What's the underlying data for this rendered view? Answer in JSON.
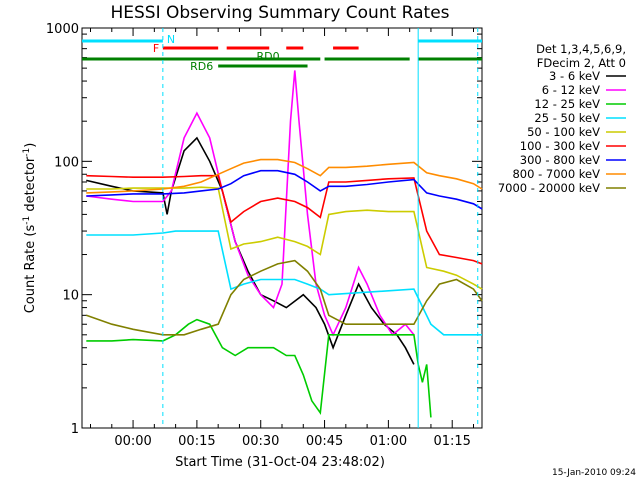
{
  "chart_data": {
    "type": "line",
    "title": "HESSI Observing Summary Count Rates",
    "xlabel": "Start Time (31-Oct-04 23:48:02)",
    "ylabel_main": "Count Rate (s",
    "ylabel_sup1": "-1",
    "ylabel_mid": " detector",
    "ylabel_sup2": "-1",
    "ylabel_end": ")",
    "yscale": "log",
    "ylim": [
      1,
      1000
    ],
    "xlim_minutes_from_start": [
      -12,
      82
    ],
    "x_ticks": [
      {
        "m": 0,
        "label": "00:00"
      },
      {
        "m": 15,
        "label": "00:15"
      },
      {
        "m": 30,
        "label": "00:30"
      },
      {
        "m": 45,
        "label": "00:45"
      },
      {
        "m": 60,
        "label": "01:00"
      },
      {
        "m": 75,
        "label": "01:15"
      }
    ],
    "y_ticks": [
      {
        "v": 1,
        "label": "1"
      },
      {
        "v": 10,
        "label": "10"
      },
      {
        "v": 100,
        "label": "100"
      },
      {
        "v": 1000,
        "label": "1000"
      }
    ],
    "flag_labels": [
      {
        "text": "N",
        "color": "#00e0ff"
      },
      {
        "text": "F",
        "color": "#ff0000"
      },
      {
        "text": "RD0",
        "color": "#008000"
      },
      {
        "text": "RD6",
        "color": "#008000"
      }
    ],
    "legend_header": [
      "Det 1,3,4,5,6,9,",
      "FDecim 2, Att 0"
    ],
    "series": [
      {
        "name": "3 - 6 keV",
        "color": "#000000",
        "points": [
          [
            -11,
            72
          ],
          [
            -5,
            65
          ],
          [
            0,
            60
          ],
          [
            7,
            58
          ],
          [
            8,
            40
          ],
          [
            9,
            60
          ],
          [
            12,
            120
          ],
          [
            15,
            150
          ],
          [
            18,
            100
          ],
          [
            21,
            60
          ],
          [
            24,
            25
          ],
          [
            27,
            15
          ],
          [
            30,
            10
          ],
          [
            33,
            9
          ],
          [
            36,
            8
          ],
          [
            40,
            10
          ],
          [
            43,
            8
          ],
          [
            45,
            6
          ],
          [
            47,
            4
          ],
          [
            50,
            7
          ],
          [
            53,
            12
          ],
          [
            56,
            8
          ],
          [
            59,
            6
          ],
          [
            62,
            5
          ],
          [
            64,
            4
          ],
          [
            66,
            3
          ]
        ]
      },
      {
        "name": "6 - 12 keV",
        "color": "#ff00ff",
        "points": [
          [
            -11,
            55
          ],
          [
            -5,
            52
          ],
          [
            0,
            50
          ],
          [
            7,
            50
          ],
          [
            9,
            60
          ],
          [
            12,
            150
          ],
          [
            15,
            230
          ],
          [
            18,
            150
          ],
          [
            21,
            60
          ],
          [
            24,
            25
          ],
          [
            27,
            14
          ],
          [
            30,
            10
          ],
          [
            33,
            8
          ],
          [
            35,
            12
          ],
          [
            37,
            200
          ],
          [
            38,
            480
          ],
          [
            39,
            200
          ],
          [
            41,
            40
          ],
          [
            43,
            12
          ],
          [
            45,
            7
          ],
          [
            47,
            5
          ],
          [
            50,
            8
          ],
          [
            53,
            16
          ],
          [
            55,
            12
          ],
          [
            58,
            7
          ],
          [
            61,
            5
          ],
          [
            64,
            6
          ],
          [
            66,
            5
          ]
        ]
      },
      {
        "name": "12 - 25 keV",
        "color": "#00cc00",
        "points": [
          [
            -11,
            4.5
          ],
          [
            -5,
            4.5
          ],
          [
            0,
            4.6
          ],
          [
            7,
            4.5
          ],
          [
            10,
            5
          ],
          [
            13,
            6
          ],
          [
            15,
            6.5
          ],
          [
            18,
            6
          ],
          [
            21,
            4
          ],
          [
            24,
            3.5
          ],
          [
            27,
            4
          ],
          [
            30,
            4
          ],
          [
            33,
            4
          ],
          [
            36,
            3.5
          ],
          [
            38,
            3.5
          ],
          [
            40,
            2.5
          ],
          [
            42,
            1.6
          ],
          [
            44,
            1.3
          ],
          [
            46,
            5
          ],
          [
            50,
            5
          ],
          [
            55,
            5
          ],
          [
            60,
            5
          ],
          [
            66,
            5
          ],
          [
            67,
            3
          ],
          [
            68,
            2.2
          ],
          [
            69,
            3
          ],
          [
            70,
            1.2
          ]
        ]
      },
      {
        "name": "25 - 50 keV",
        "color": "#00e0ff",
        "points": [
          [
            -11,
            28
          ],
          [
            -5,
            28
          ],
          [
            0,
            28
          ],
          [
            7,
            29
          ],
          [
            10,
            30
          ],
          [
            13,
            30
          ],
          [
            16,
            30
          ],
          [
            20,
            30
          ],
          [
            23,
            11
          ],
          [
            26,
            12
          ],
          [
            30,
            13
          ],
          [
            34,
            13
          ],
          [
            38,
            13
          ],
          [
            41,
            12
          ],
          [
            44,
            11
          ],
          [
            46,
            10
          ],
          [
            66,
            11
          ],
          [
            70,
            6
          ],
          [
            73,
            5
          ],
          [
            76,
            5
          ],
          [
            80,
            5
          ],
          [
            82,
            5
          ]
        ]
      },
      {
        "name": "50 - 100 keV",
        "color": "#cccc00",
        "points": [
          [
            -11,
            62
          ],
          [
            -5,
            62
          ],
          [
            0,
            63
          ],
          [
            7,
            63
          ],
          [
            12,
            63
          ],
          [
            16,
            64
          ],
          [
            20,
            63
          ],
          [
            23,
            22
          ],
          [
            26,
            24
          ],
          [
            30,
            25
          ],
          [
            34,
            27
          ],
          [
            38,
            25
          ],
          [
            41,
            23
          ],
          [
            44,
            20
          ],
          [
            46,
            40
          ],
          [
            50,
            42
          ],
          [
            55,
            43
          ],
          [
            60,
            42
          ],
          [
            66,
            42
          ],
          [
            69,
            16
          ],
          [
            73,
            15
          ],
          [
            76,
            14
          ],
          [
            80,
            12
          ],
          [
            82,
            11
          ]
        ]
      },
      {
        "name": "100 - 300 keV",
        "color": "#ff0000",
        "points": [
          [
            -11,
            78
          ],
          [
            -5,
            77
          ],
          [
            0,
            76
          ],
          [
            7,
            76
          ],
          [
            12,
            77
          ],
          [
            16,
            78
          ],
          [
            20,
            78
          ],
          [
            23,
            35
          ],
          [
            26,
            42
          ],
          [
            30,
            50
          ],
          [
            34,
            53
          ],
          [
            38,
            50
          ],
          [
            41,
            45
          ],
          [
            44,
            38
          ],
          [
            46,
            70
          ],
          [
            50,
            70
          ],
          [
            55,
            72
          ],
          [
            60,
            74
          ],
          [
            66,
            75
          ],
          [
            69,
            30
          ],
          [
            72,
            20
          ],
          [
            76,
            19
          ],
          [
            80,
            18
          ],
          [
            82,
            17
          ]
        ]
      },
      {
        "name": "300 - 800 keV",
        "color": "#0000ff",
        "points": [
          [
            -11,
            55
          ],
          [
            -5,
            56
          ],
          [
            0,
            57
          ],
          [
            7,
            57
          ],
          [
            12,
            58
          ],
          [
            16,
            60
          ],
          [
            20,
            62
          ],
          [
            23,
            68
          ],
          [
            26,
            78
          ],
          [
            30,
            85
          ],
          [
            34,
            85
          ],
          [
            38,
            80
          ],
          [
            41,
            70
          ],
          [
            44,
            60
          ],
          [
            46,
            65
          ],
          [
            50,
            65
          ],
          [
            55,
            67
          ],
          [
            60,
            70
          ],
          [
            66,
            73
          ],
          [
            69,
            58
          ],
          [
            72,
            55
          ],
          [
            76,
            52
          ],
          [
            80,
            48
          ],
          [
            82,
            44
          ]
        ]
      },
      {
        "name": "800 - 7000 keV",
        "color": "#ff8c00",
        "points": [
          [
            -11,
            58
          ],
          [
            -5,
            59
          ],
          [
            0,
            60
          ],
          [
            7,
            62
          ],
          [
            12,
            65
          ],
          [
            16,
            70
          ],
          [
            20,
            80
          ],
          [
            23,
            88
          ],
          [
            26,
            97
          ],
          [
            30,
            103
          ],
          [
            34,
            103
          ],
          [
            38,
            98
          ],
          [
            41,
            88
          ],
          [
            44,
            78
          ],
          [
            46,
            90
          ],
          [
            50,
            90
          ],
          [
            55,
            92
          ],
          [
            60,
            95
          ],
          [
            66,
            98
          ],
          [
            69,
            82
          ],
          [
            72,
            78
          ],
          [
            76,
            74
          ],
          [
            80,
            68
          ],
          [
            82,
            62
          ]
        ]
      },
      {
        "name": "7000 - 20000 keV",
        "color": "#808000",
        "points": [
          [
            -11,
            7
          ],
          [
            -5,
            6
          ],
          [
            0,
            5.5
          ],
          [
            7,
            5
          ],
          [
            12,
            5
          ],
          [
            16,
            5.5
          ],
          [
            20,
            6
          ],
          [
            23,
            10
          ],
          [
            26,
            13
          ],
          [
            30,
            15
          ],
          [
            34,
            17
          ],
          [
            38,
            18
          ],
          [
            41,
            15
          ],
          [
            44,
            11
          ],
          [
            46,
            7
          ],
          [
            50,
            6
          ],
          [
            55,
            6
          ],
          [
            60,
            6
          ],
          [
            66,
            6
          ],
          [
            69,
            9
          ],
          [
            72,
            12
          ],
          [
            76,
            13
          ],
          [
            80,
            11
          ],
          [
            82,
            9
          ]
        ]
      }
    ],
    "flags": {
      "n": [
        [
          -12,
          7
        ],
        [
          67,
          82
        ]
      ],
      "f": [
        [
          7,
          20
        ],
        [
          22,
          32
        ],
        [
          36,
          40
        ],
        [
          47,
          53
        ]
      ],
      "rd0": [
        [
          -12,
          44
        ],
        [
          45,
          65
        ],
        [
          67,
          82
        ]
      ],
      "rd6": [
        [
          20,
          41
        ]
      ]
    },
    "saa_markers_m": [
      7,
      67,
      81
    ]
  },
  "footer": {
    "timestamp": "15-Jan-2010 09:24"
  }
}
